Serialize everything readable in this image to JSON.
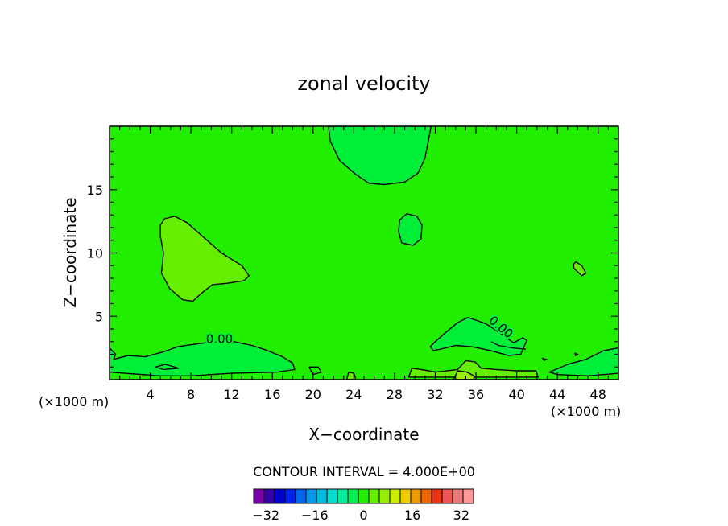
{
  "chart_data": {
    "type": "heatmap",
    "title": "zonal velocity",
    "xlabel": "X−coordinate",
    "ylabel": "Z−coordinate",
    "x_unit_left": "(×1000 m)",
    "x_unit_right": "(×1000 m)",
    "xlim": [
      0,
      50
    ],
    "ylim": [
      0,
      20
    ],
    "x_ticks": [
      4,
      8,
      12,
      16,
      20,
      24,
      28,
      32,
      36,
      40,
      44,
      48
    ],
    "y_ticks": [
      5,
      10,
      15
    ],
    "contour_interval_label": "CONTOUR INTERVAL = 4.000E+00",
    "contour_labels": [
      {
        "text": "0.00",
        "x": 10.8,
        "y": 2.9,
        "angle": 0
      },
      {
        "text": "0.00",
        "x": 38.2,
        "y": 3.9,
        "angle": 40
      }
    ],
    "background_fill": "#22ee00",
    "regions": [
      {
        "name": "zero-contour-top",
        "color": "#00f03a",
        "points": [
          [
            21.5,
            20
          ],
          [
            21.7,
            18.8
          ],
          [
            22.6,
            17.3
          ],
          [
            24.2,
            16.2
          ],
          [
            25.5,
            15.5
          ],
          [
            27.0,
            15.4
          ],
          [
            29.0,
            15.6
          ],
          [
            30.3,
            16.3
          ],
          [
            31.0,
            17.5
          ],
          [
            31.6,
            20
          ]
        ]
      },
      {
        "name": "zero-contour-small-loop",
        "color": "#00f03a",
        "points": [
          [
            28.5,
            12.6
          ],
          [
            29.2,
            13.1
          ],
          [
            30.2,
            12.9
          ],
          [
            30.7,
            12.2
          ],
          [
            30.6,
            11.1
          ],
          [
            29.8,
            10.6
          ],
          [
            28.7,
            10.8
          ],
          [
            28.4,
            11.7
          ]
        ]
      },
      {
        "name": "positive-blob-left",
        "color": "#66ee00",
        "points": [
          [
            5.0,
            12.2
          ],
          [
            5.4,
            12.7
          ],
          [
            6.4,
            12.9
          ],
          [
            7.6,
            12.4
          ],
          [
            9.0,
            11.4
          ],
          [
            11.0,
            10.0
          ],
          [
            13.0,
            9.0
          ],
          [
            13.7,
            8.2
          ],
          [
            13.2,
            7.8
          ],
          [
            11.5,
            7.6
          ],
          [
            10.1,
            7.5
          ],
          [
            9.0,
            6.8
          ],
          [
            8.2,
            6.2
          ],
          [
            7.2,
            6.3
          ],
          [
            5.9,
            7.2
          ],
          [
            5.1,
            8.4
          ],
          [
            5.3,
            10.0
          ],
          [
            5.0,
            11.3
          ]
        ]
      },
      {
        "name": "positive-blob-right",
        "color": "#66ee00",
        "points": [
          [
            45.8,
            9.3
          ],
          [
            46.4,
            9.0
          ],
          [
            46.8,
            8.4
          ],
          [
            46.4,
            8.2
          ],
          [
            45.6,
            8.8
          ],
          [
            45.6,
            9.1
          ]
        ]
      },
      {
        "name": "zero-contour-bottom-left",
        "color": "#00f03a",
        "points": [
          [
            0,
            2.5
          ],
          [
            0.6,
            2.0
          ],
          [
            0.4,
            1.6
          ],
          [
            1.8,
            1.9
          ],
          [
            3.5,
            1.8
          ],
          [
            5.3,
            2.2
          ],
          [
            6.7,
            2.6
          ],
          [
            8.4,
            2.8
          ],
          [
            10.3,
            3.0
          ],
          [
            12.2,
            3.0
          ],
          [
            14.0,
            2.7
          ],
          [
            15.5,
            2.3
          ],
          [
            17.0,
            1.8
          ],
          [
            18.0,
            1.3
          ],
          [
            18.2,
            0.8
          ],
          [
            16.5,
            0.6
          ],
          [
            12.0,
            0.5
          ],
          [
            8.0,
            0.3
          ],
          [
            5.0,
            0.3
          ],
          [
            1.5,
            0.5
          ],
          [
            0,
            0.6
          ]
        ]
      },
      {
        "name": "zero-contour-mid-right",
        "color": "#00f03a",
        "points": [
          [
            31.5,
            2.6
          ],
          [
            32.0,
            3.0
          ],
          [
            33.0,
            3.7
          ],
          [
            34.2,
            4.5
          ],
          [
            35.2,
            4.9
          ],
          [
            36.0,
            4.7
          ],
          [
            37.0,
            4.4
          ],
          [
            38.5,
            3.6
          ],
          [
            39.7,
            2.9
          ],
          [
            40.6,
            3.3
          ],
          [
            41.0,
            3.1
          ],
          [
            40.4,
            2.0
          ],
          [
            39.2,
            1.9
          ],
          [
            37.4,
            2.3
          ],
          [
            35.6,
            2.6
          ],
          [
            34.0,
            2.7
          ],
          [
            32.5,
            2.4
          ],
          [
            31.8,
            2.3
          ]
        ]
      },
      {
        "name": "zero-contour-bottom-right",
        "color": "#00f03a",
        "points": [
          [
            43.2,
            0.6
          ],
          [
            45.0,
            1.2
          ],
          [
            46.8,
            1.6
          ],
          [
            48.6,
            2.3
          ],
          [
            50,
            2.5
          ],
          [
            50,
            0.5
          ],
          [
            47.0,
            0.3
          ],
          [
            44.0,
            0.4
          ]
        ]
      },
      {
        "name": "positive-patch-bottom-center",
        "color": "#66ee00",
        "points": [
          [
            29.4,
            0.2
          ],
          [
            29.7,
            0.9
          ],
          [
            30.6,
            0.8
          ],
          [
            32.1,
            0.6
          ],
          [
            34.2,
            0.8
          ],
          [
            35.0,
            1.5
          ],
          [
            35.9,
            1.4
          ],
          [
            36.5,
            0.9
          ],
          [
            38.0,
            0.8
          ],
          [
            40.0,
            0.7
          ],
          [
            41.9,
            0.7
          ],
          [
            42.1,
            0.2
          ]
        ]
      },
      {
        "name": "positive-patch-bottom-center-2",
        "color": "#99ee00",
        "points": [
          [
            33.8,
            0.0
          ],
          [
            34.2,
            0.7
          ],
          [
            35.1,
            0.6
          ],
          [
            35.8,
            0.3
          ],
          [
            35.8,
            0.0
          ]
        ]
      },
      {
        "name": "positive-patch-bottom-small",
        "color": "#66ee00",
        "points": [
          [
            23.3,
            0.0
          ],
          [
            23.5,
            0.6
          ],
          [
            24.0,
            0.5
          ],
          [
            24.2,
            0.0
          ]
        ]
      }
    ],
    "contour_lines": [
      [
        [
          37.5,
          3.0
        ],
        [
          38.2,
          2.7
        ],
        [
          39.6,
          2.5
        ],
        [
          40.9,
          2.4
        ]
      ],
      [
        [
          4.5,
          1.0
        ],
        [
          5.5,
          1.2
        ],
        [
          6.8,
          0.9
        ],
        [
          5.3,
          0.8
        ],
        [
          4.5,
          1.0
        ]
      ],
      [
        [
          19.6,
          1.0
        ],
        [
          20.5,
          1.0
        ],
        [
          20.8,
          0.6
        ],
        [
          20.0,
          0.4
        ],
        [
          19.6,
          1.0
        ]
      ],
      [
        [
          42.5,
          1.7
        ],
        [
          42.9,
          1.6
        ],
        [
          42.7,
          1.5
        ],
        [
          42.5,
          1.7
        ]
      ],
      [
        [
          45.7,
          2.1
        ],
        [
          46.0,
          2.0
        ],
        [
          45.8,
          1.9
        ],
        [
          45.7,
          2.1
        ]
      ]
    ],
    "colorbar": {
      "min": -36,
      "max": 36,
      "step": 4,
      "tick_labels": [
        "−32",
        "−16",
        "0",
        "16",
        "32"
      ],
      "tick_values": [
        -32,
        -16,
        0,
        16,
        32
      ],
      "colors": [
        "#7700aa",
        "#3300aa",
        "#0000cc",
        "#0022ee",
        "#0066ee",
        "#0099ee",
        "#00bbdd",
        "#00ddcc",
        "#00ee99",
        "#00ee55",
        "#22ee00",
        "#66ee00",
        "#99ee00",
        "#ccee00",
        "#eecc00",
        "#ee9900",
        "#ee6600",
        "#ee3311",
        "#ee5555",
        "#ee7777",
        "#ff9999"
      ]
    }
  }
}
